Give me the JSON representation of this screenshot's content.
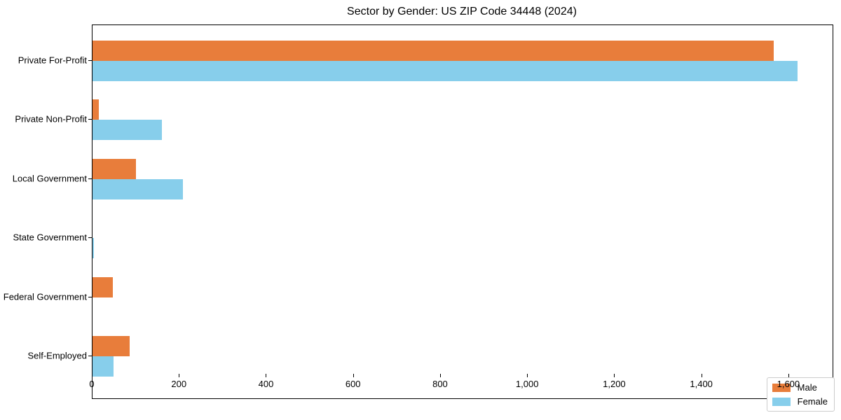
{
  "title": "Sector by Gender: US ZIP Code 34448 (2024)",
  "chart_data": {
    "type": "bar",
    "orientation": "horizontal",
    "title": "Sector by Gender: US ZIP Code 34448 (2024)",
    "categories": [
      "Private For-Profit",
      "Private Non-Profit",
      "Local Government",
      "State Government",
      "Federal Government",
      "Self-Employed"
    ],
    "series": [
      {
        "name": "Male",
        "color": "#e87d3b",
        "values": [
          1565,
          15,
          100,
          0,
          46,
          86
        ]
      },
      {
        "name": "Female",
        "color": "#87ceeb",
        "values": [
          1620,
          160,
          207,
          4,
          0,
          48
        ]
      }
    ],
    "xlabel": "",
    "ylabel": "",
    "xlim": [
      0,
      1700
    ],
    "x_ticks": [
      0,
      200,
      400,
      600,
      800,
      1000,
      1200,
      1400,
      1600
    ],
    "x_tick_labels": [
      "0",
      "200",
      "400",
      "600",
      "800",
      "1,000",
      "1,200",
      "1,400",
      "1,600"
    ],
    "grid": false,
    "legend": {
      "position": "lower right",
      "entries": [
        "Male",
        "Female"
      ]
    }
  }
}
